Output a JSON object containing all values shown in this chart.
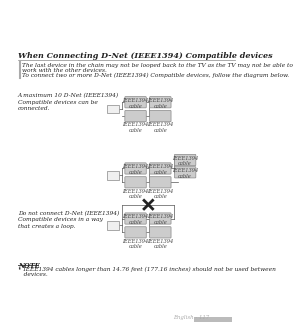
{
  "page_bg": "#ffffff",
  "title": "When Connecting D-Net (IEEE1394) Compatible devices",
  "intro_lines": [
    "The last device in the chain may not be looped back to the TV as the TV may not be able to",
    "work with the other devices.",
    "To connect two or more D-Net (IEEE1394) Compatible devices, follow the diagram below."
  ],
  "note_title": "NOTE",
  "note_bullet": "IEEE1394 cables longer than 14.76 feet (177.16 inches) should not be used between devices.",
  "footer": "English - 117",
  "diagram1_label": "A maximum 10 D-Net (IEEE1394)\nCompatible devices can be\nconnected.",
  "diagram3_label": "Do not connect D-Net (IEEE1394)\nCompatible devices in a way\nthat creates a loop.",
  "cable_label": "IEEE1394\ncable",
  "device_color": "#cccccc",
  "device_edge": "#888888",
  "line_color": "#555555",
  "text_color": "#222222",
  "small_font": 4.2,
  "body_font": 4.8,
  "title_font": 5.8
}
